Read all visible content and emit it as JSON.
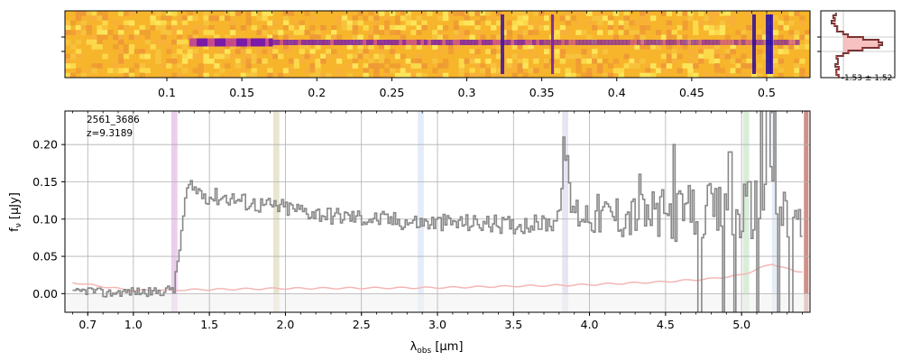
{
  "chart_data": [
    {
      "type": "heatmap",
      "description_key": "spectrum2d",
      "top_axis_ticks": [
        "0.1",
        "0.15",
        "0.2",
        "0.25",
        "0.3",
        "0.35",
        "0.4",
        "0.45",
        "0.5"
      ],
      "top_axis_values": [
        0.1,
        0.15,
        0.2,
        0.25,
        0.3,
        0.35,
        0.4,
        0.45,
        0.5
      ],
      "colormap": "plasma"
    },
    {
      "type": "line",
      "description_key": "profile",
      "annotation": "-1.53 ± 1.52",
      "profile_line_color": "#3a2a2a",
      "profile_fill_color": "#f4a7a7"
    },
    {
      "type": "line",
      "description_key": "spectrum1d",
      "label_id": "2561_3686",
      "label_z": "z=9.3189",
      "xlabel_main": "λ",
      "xlabel_sub": "obs",
      "xlabel_unit": " [μm]",
      "ylabel_main": "f",
      "ylabel_sub": "ν",
      "ylabel_unit": " [μJy]",
      "xlim": [
        0.55,
        5.45
      ],
      "ylim": [
        -0.025,
        0.245
      ],
      "x_ticks": [
        "0.7",
        "1.0",
        "1.5",
        "2.0",
        "2.5",
        "3.0",
        "3.5",
        "4.0",
        "4.5",
        "5.0"
      ],
      "x_tick_values": [
        0.7,
        1.0,
        1.5,
        2.0,
        2.5,
        3.0,
        3.5,
        4.0,
        4.5,
        5.0
      ],
      "y_ticks": [
        "0.00",
        "0.05",
        "0.10",
        "0.15",
        "0.20"
      ],
      "y_tick_values": [
        0.0,
        0.05,
        0.1,
        0.15,
        0.2
      ],
      "grid": true,
      "series_colors": {
        "flux": "#888888",
        "error": "#f4b6b6"
      },
      "line_bands": [
        {
          "x": [
            1.25,
            1.29
          ],
          "color": "#e8c6e8"
        },
        {
          "x": [
            1.92,
            1.96
          ],
          "color": "#e6e0c6"
        },
        {
          "x": [
            2.87,
            2.91
          ],
          "color": "#dfeaf6"
        },
        {
          "x": [
            3.82,
            3.86
          ],
          "color": "#e4e0f0"
        },
        {
          "x": [
            5.01,
            5.05
          ],
          "color": "#d4ead4"
        },
        {
          "x": [
            5.2,
            5.23
          ],
          "color": "#dfeaf6"
        },
        {
          "x": [
            5.41,
            5.44
          ],
          "color": "#c87c72"
        }
      ],
      "flux_anchors": [
        [
          0.6,
          0.0
        ],
        [
          0.7,
          0.005
        ],
        [
          0.8,
          0.0
        ],
        [
          0.9,
          0.002
        ],
        [
          1.0,
          0.003
        ],
        [
          1.1,
          0.002
        ],
        [
          1.2,
          0.003
        ],
        [
          1.27,
          0.01
        ],
        [
          1.31,
          0.08
        ],
        [
          1.35,
          0.14
        ],
        [
          1.4,
          0.14
        ],
        [
          1.5,
          0.13
        ],
        [
          1.6,
          0.13
        ],
        [
          1.8,
          0.12
        ],
        [
          2.0,
          0.115
        ],
        [
          2.3,
          0.105
        ],
        [
          2.6,
          0.1
        ],
        [
          2.9,
          0.095
        ],
        [
          3.2,
          0.095
        ],
        [
          3.5,
          0.092
        ],
        [
          3.75,
          0.095
        ],
        [
          3.82,
          0.12
        ],
        [
          3.84,
          0.2
        ],
        [
          3.86,
          0.13
        ],
        [
          3.9,
          0.11
        ],
        [
          4.1,
          0.105
        ],
        [
          4.3,
          0.105
        ],
        [
          4.5,
          0.105
        ],
        [
          4.7,
          0.11
        ],
        [
          4.9,
          0.105
        ],
        [
          5.0,
          0.11
        ],
        [
          5.1,
          0.12
        ],
        [
          5.2,
          0.13
        ],
        [
          5.3,
          0.1
        ],
        [
          5.38,
          0.08
        ]
      ],
      "error_anchors": [
        [
          0.6,
          0.015
        ],
        [
          1.0,
          0.004
        ],
        [
          1.3,
          0.005
        ],
        [
          2.0,
          0.007
        ],
        [
          3.0,
          0.008
        ],
        [
          4.0,
          0.012
        ],
        [
          4.5,
          0.016
        ],
        [
          4.8,
          0.02
        ],
        [
          5.0,
          0.025
        ],
        [
          5.2,
          0.04
        ],
        [
          5.35,
          0.03
        ],
        [
          5.4,
          0.03
        ]
      ],
      "spikes": [
        [
          3.83,
          0.21
        ],
        [
          3.85,
          0.185
        ],
        [
          5.13,
          0.27
        ],
        [
          5.17,
          0.27
        ],
        [
          5.21,
          0.25
        ],
        [
          4.55,
          0.2
        ],
        [
          4.92,
          0.19
        ],
        [
          4.33,
          0.16
        ],
        [
          4.71,
          0.17
        ],
        [
          5.36,
          0.1
        ]
      ],
      "dips": [
        [
          4.72,
          -0.04
        ],
        [
          4.95,
          -0.05
        ],
        [
          5.1,
          -0.04
        ],
        [
          5.24,
          -0.06
        ],
        [
          5.32,
          -0.04
        ],
        [
          4.88,
          -0.03
        ]
      ]
    }
  ]
}
